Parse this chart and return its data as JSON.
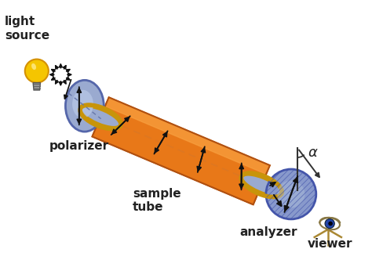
{
  "bg_color": "#ffffff",
  "labels": {
    "light_source": "light\nsource",
    "polarizer": "polarizer",
    "sample_tube": "sample\ntube",
    "analyzer": "analyzer",
    "viewer": "viewer",
    "alpha": "α"
  },
  "colors": {
    "bulb_yellow": "#f5c500",
    "bulb_orange": "#d49000",
    "polarizer_blue": "#9aaad0",
    "polarizer_blue2": "#b8c8e8",
    "polarizer_edge": "#5566aa",
    "tube_orange": "#e87818",
    "tube_highlight": "#f8a040",
    "tube_shadow": "#b05010",
    "tube_end_blue": "#9aaad0",
    "tube_ring_gold": "#c8940a",
    "analyzer_blue": "#8899cc",
    "analyzer_blue2": "#aabbd8",
    "arrow_color": "#111111",
    "label_color": "#222222",
    "alpha_line": "#333333"
  },
  "figsize": [
    4.74,
    3.55
  ],
  "dpi": 100
}
